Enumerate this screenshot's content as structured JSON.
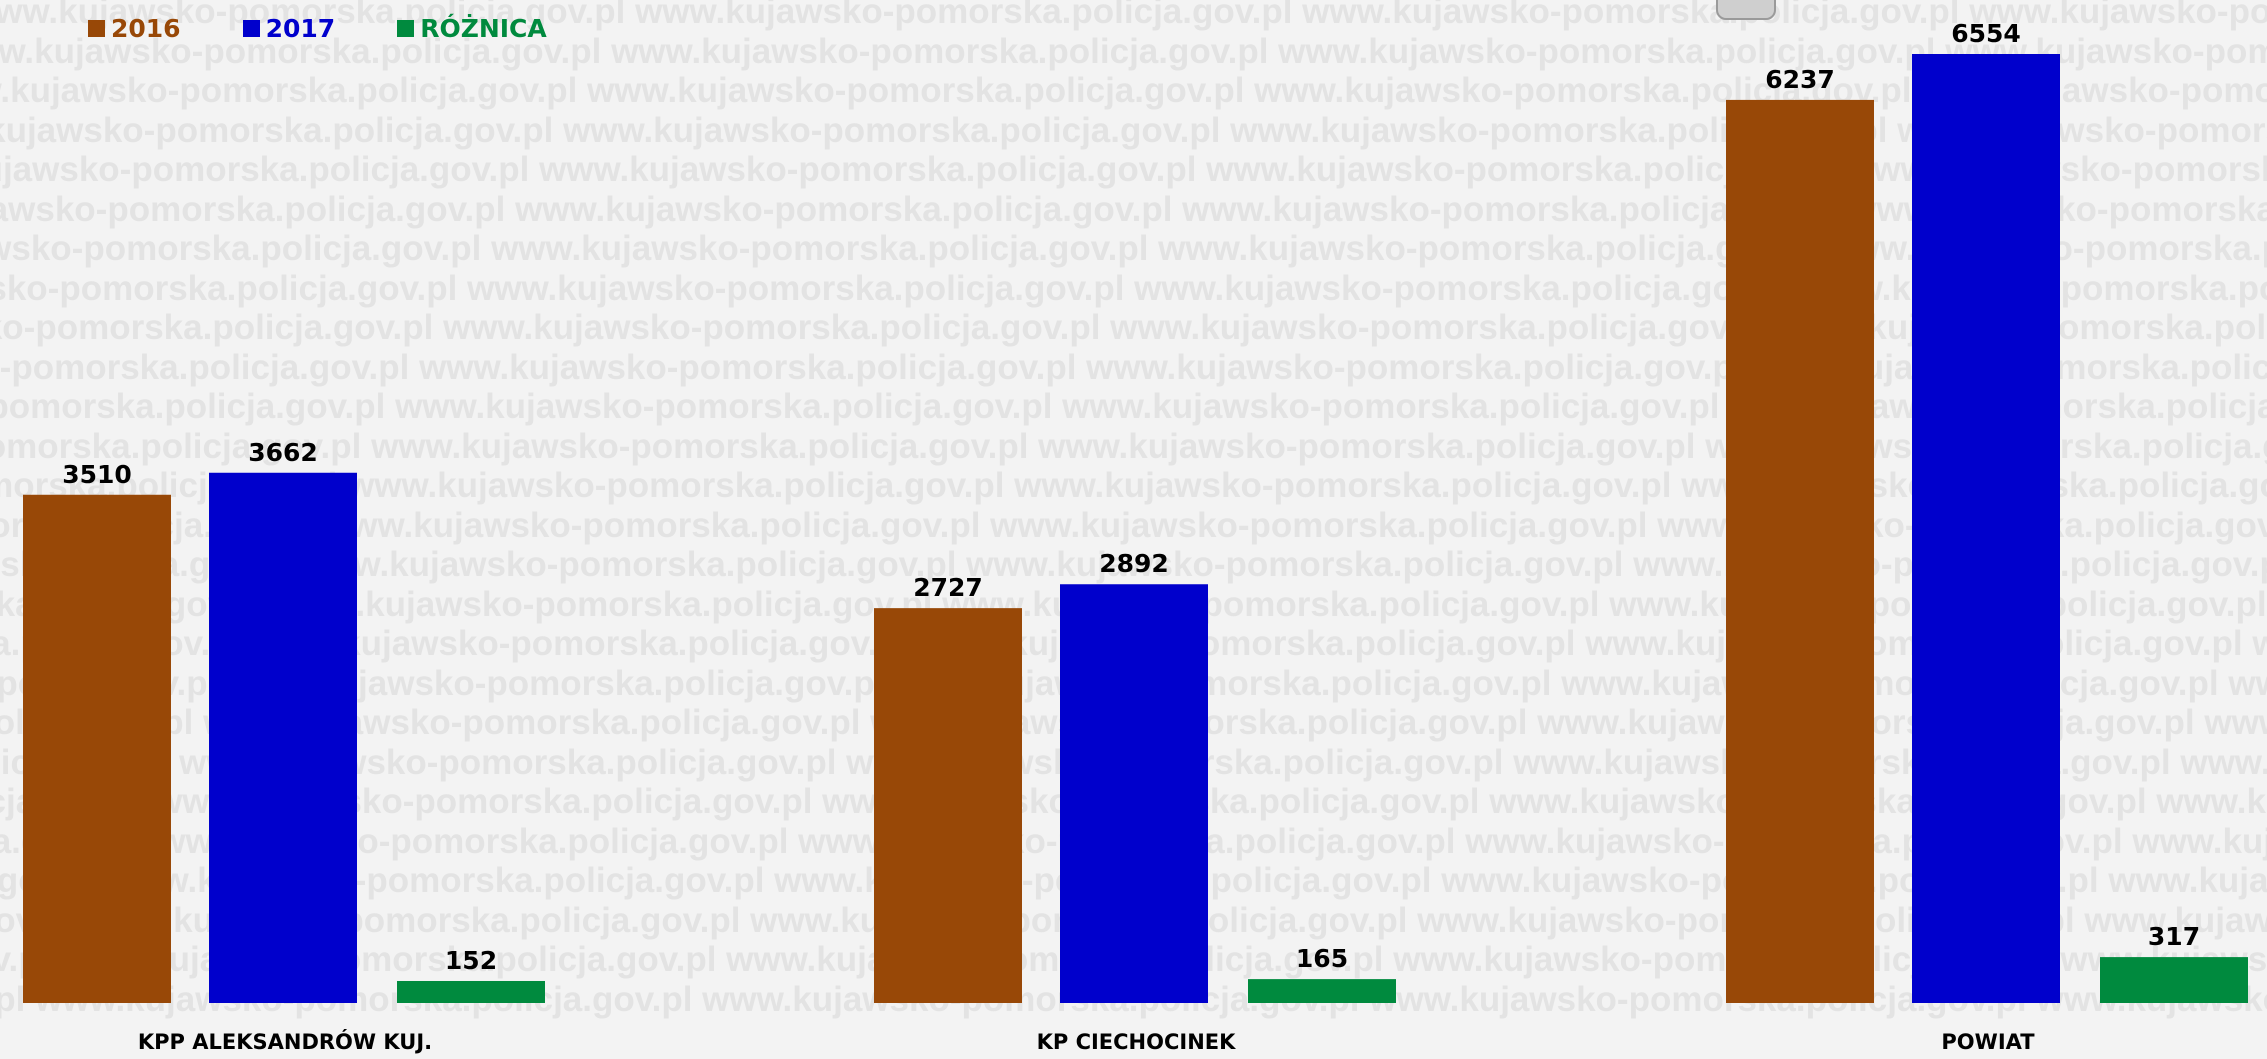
{
  "watermark_text": "www.kujawsko-pomorska.policja.gov.pl",
  "chart_data": {
    "type": "bar",
    "categories": [
      "KPP ALEKSANDRÓW KUJ.",
      "KP CIECHOCINEK",
      "POWIAT"
    ],
    "series": [
      {
        "name": "2016",
        "color": "#984807",
        "values": [
          3510,
          2727,
          6237
        ]
      },
      {
        "name": "2017",
        "color": "#0000CC",
        "values": [
          3662,
          2892,
          6554
        ]
      },
      {
        "name": "RÓŻNICA",
        "color": "#008A3E",
        "values": [
          152,
          165,
          317
        ]
      }
    ],
    "title": "",
    "xlabel": "",
    "ylabel": "",
    "ylim": [
      0,
      6554
    ],
    "grid": false,
    "legend_position": "top-left"
  }
}
